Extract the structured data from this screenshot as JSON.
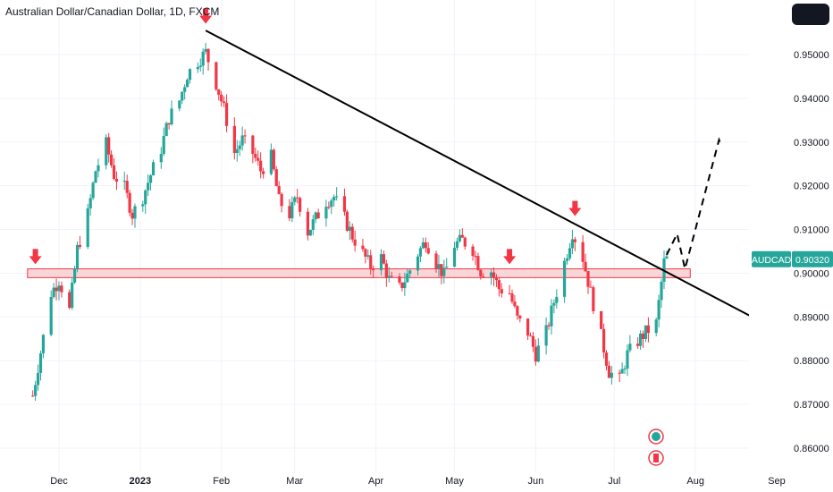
{
  "header": {
    "title": "Australian Dollar/Canadian Dollar, 1D, FXCM"
  },
  "colors": {
    "up": "#26a69a",
    "down": "#f23645",
    "zone_fill": "#f7c9cc",
    "zone_stroke": "#f23645",
    "trend": "#000000",
    "arrow": "#f23645",
    "label_bg": "#26a69a"
  },
  "price_label": {
    "symbol": "AUDCAD",
    "value": "0.90320"
  },
  "chart_data": {
    "type": "candlestick",
    "title": "Australian Dollar/Canadian Dollar, 1D, FXCM",
    "x_labels": [
      "Dec",
      "2023",
      "Feb",
      "Mar",
      "Apr",
      "May",
      "Jun",
      "Jul",
      "Aug",
      "Sep"
    ],
    "y_labels": [
      "0.95000",
      "0.94000",
      "0.93000",
      "0.92000",
      "0.91000",
      "0.90000",
      "0.89000",
      "0.88000",
      "0.87000",
      "0.86000"
    ],
    "ylim": [
      0.8555,
      0.9595
    ],
    "grid": true,
    "last_price": 0.9032,
    "path": [
      [
        "2022-11-21",
        0.872
      ],
      [
        "2022-11-24",
        0.882
      ],
      [
        "2022-11-28",
        0.8955
      ],
      [
        "2022-12-01",
        0.8985
      ],
      [
        "2022-12-05",
        0.8915
      ],
      [
        "2022-12-08",
        0.9055
      ],
      [
        "2022-12-12",
        0.9135
      ],
      [
        "2022-12-15",
        0.9235
      ],
      [
        "2022-12-19",
        0.9295
      ],
      [
        "2022-12-22",
        0.9225
      ],
      [
        "2022-12-26",
        0.9195
      ],
      [
        "2022-12-29",
        0.9135
      ],
      [
        "2023-01-02",
        0.9175
      ],
      [
        "2023-01-05",
        0.9225
      ],
      [
        "2023-01-09",
        0.9285
      ],
      [
        "2023-01-12",
        0.9355
      ],
      [
        "2023-01-16",
        0.9395
      ],
      [
        "2023-01-19",
        0.9455
      ],
      [
        "2023-01-23",
        0.9485
      ],
      [
        "2023-01-26",
        0.9505
      ],
      [
        "2023-01-30",
        0.9435
      ],
      [
        "2023-02-02",
        0.9375
      ],
      [
        "2023-02-06",
        0.9275
      ],
      [
        "2023-02-09",
        0.9305
      ],
      [
        "2023-02-13",
        0.9275
      ],
      [
        "2023-02-16",
        0.9235
      ],
      [
        "2023-02-20",
        0.9265
      ],
      [
        "2023-02-23",
        0.9165
      ],
      [
        "2023-02-27",
        0.9135
      ],
      [
        "2023-03-02",
        0.9175
      ],
      [
        "2023-03-06",
        0.9095
      ],
      [
        "2023-03-09",
        0.9125
      ],
      [
        "2023-03-13",
        0.9165
      ],
      [
        "2023-03-16",
        0.9175
      ],
      [
        "2023-03-20",
        0.9125
      ],
      [
        "2023-03-23",
        0.9085
      ],
      [
        "2023-03-27",
        0.9045
      ],
      [
        "2023-03-30",
        0.9015
      ],
      [
        "2023-04-03",
        0.9035
      ],
      [
        "2023-04-06",
        0.8985
      ],
      [
        "2023-04-10",
        0.8965
      ],
      [
        "2023-04-13",
        0.8995
      ],
      [
        "2023-04-17",
        0.9045
      ],
      [
        "2023-04-20",
        0.9075
      ],
      [
        "2023-04-24",
        0.9025
      ],
      [
        "2023-04-27",
        0.8995
      ],
      [
        "2023-05-01",
        0.9065
      ],
      [
        "2023-05-04",
        0.9075
      ],
      [
        "2023-05-08",
        0.9055
      ],
      [
        "2023-05-11",
        0.9005
      ],
      [
        "2023-05-15",
        0.9005
      ],
      [
        "2023-05-18",
        0.8965
      ],
      [
        "2023-05-22",
        0.8955
      ],
      [
        "2023-05-25",
        0.8895
      ],
      [
        "2023-05-29",
        0.8865
      ],
      [
        "2023-06-01",
        0.8815
      ],
      [
        "2023-06-05",
        0.8865
      ],
      [
        "2023-06-08",
        0.8935
      ],
      [
        "2023-06-12",
        0.9025
      ],
      [
        "2023-06-15",
        0.9095
      ],
      [
        "2023-06-19",
        0.9035
      ],
      [
        "2023-06-22",
        0.8955
      ],
      [
        "2023-06-26",
        0.8855
      ],
      [
        "2023-06-29",
        0.8775
      ],
      [
        "2023-07-03",
        0.8755
      ],
      [
        "2023-07-06",
        0.8815
      ],
      [
        "2023-07-10",
        0.8845
      ],
      [
        "2023-07-13",
        0.8865
      ],
      [
        "2023-07-17",
        0.8885
      ],
      [
        "2023-07-20",
        0.9025
      ],
      [
        "2023-07-21",
        0.9032
      ]
    ],
    "support_zone": [
      0.899,
      0.901
    ],
    "trendline": [
      [
        "2023-01-26",
        0.9555
      ],
      [
        "2023-09-06",
        0.8855
      ]
    ],
    "projection": [
      [
        "2023-07-21",
        0.9042
      ],
      [
        "2023-07-25",
        0.909
      ],
      [
        "2023-07-28",
        0.901
      ],
      [
        "2023-08-10",
        0.9305
      ],
      [
        "2023-08-11",
        0.929
      ]
    ],
    "arrow_markers": [
      [
        "2022-11-22",
        0.9035
      ],
      [
        "2023-01-26",
        0.9585
      ],
      [
        "2023-05-22",
        0.9035
      ],
      [
        "2023-06-16",
        0.9145
      ]
    ]
  }
}
